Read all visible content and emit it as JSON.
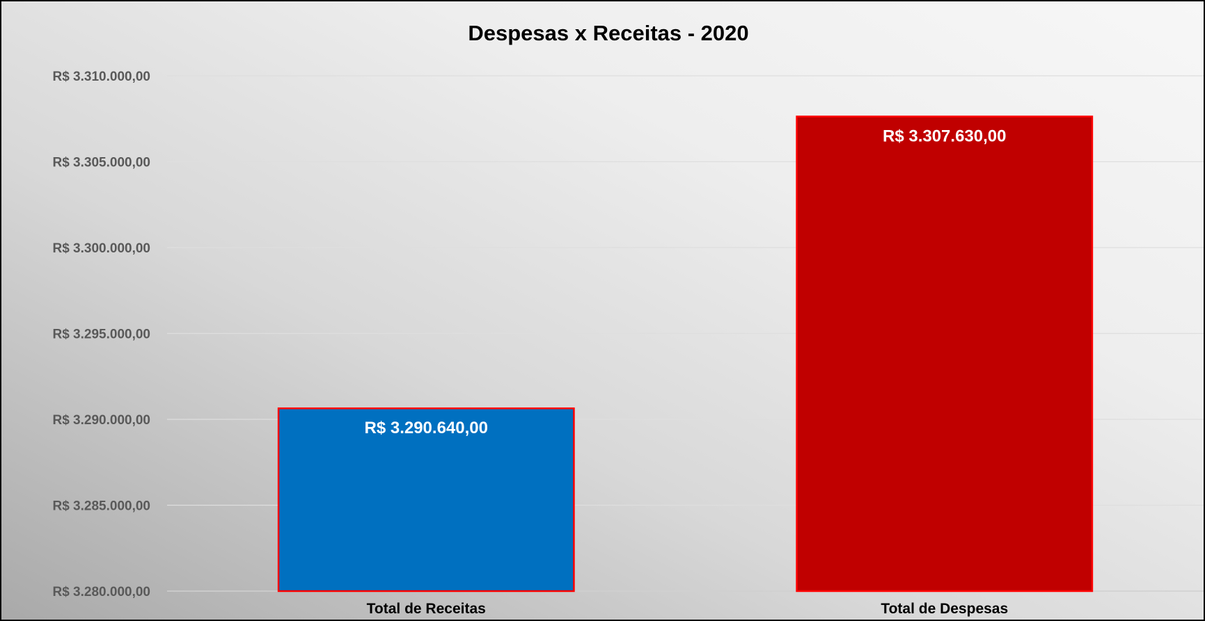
{
  "chart_data": {
    "type": "bar",
    "title": "Despesas x Receitas - 2020",
    "xlabel": "",
    "ylabel": "",
    "categories": [
      "Total de Receitas",
      "Total de Despesas"
    ],
    "values": [
      3290640,
      3307630
    ],
    "data_labels": [
      "R$ 3.290.640,00",
      "R$ 3.307.630,00"
    ],
    "bar_colors": [
      "#0070c0",
      "#c00000"
    ],
    "bar_border_color": "#ff0000",
    "ylim": [
      3280000,
      3310000
    ],
    "y_ticks": [
      3280000,
      3285000,
      3290000,
      3295000,
      3300000,
      3305000,
      3310000
    ],
    "y_tick_labels": [
      "R$ 3.280.000,00",
      "R$ 3.285.000,00",
      "R$ 3.290.000,00",
      "R$ 3.295.000,00",
      "R$ 3.300.000,00",
      "R$ 3.305.000,00",
      "R$ 3.310.000,00"
    ],
    "grid": true,
    "legend": "none"
  }
}
